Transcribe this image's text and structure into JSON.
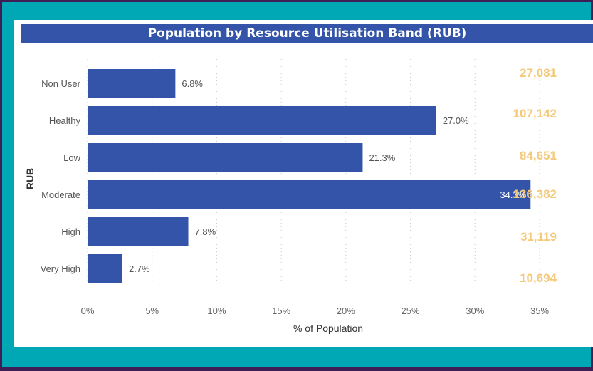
{
  "chart_data": {
    "type": "bar",
    "orientation": "horizontal",
    "title": "Population by Resource Utilisation Band (RUB)",
    "xlabel": "% of Population",
    "ylabel": "RUB",
    "categories": [
      "Non User",
      "Healthy",
      "Low",
      "Moderate",
      "High",
      "Very High"
    ],
    "values": [
      6.8,
      27.0,
      21.3,
      34.3,
      7.8,
      2.7
    ],
    "value_labels": [
      "6.8%",
      "27.0%",
      "21.3%",
      "34.3%",
      "7.8%",
      "2.7%"
    ],
    "counts": [
      "27,081",
      "107,142",
      "84,651",
      "136,382",
      "31,119",
      "10,694"
    ],
    "xlim": [
      0,
      35
    ],
    "xticks": [
      "0%",
      "5%",
      "10%",
      "15%",
      "20%",
      "25%",
      "30%",
      "35%"
    ],
    "grid": true,
    "colors": {
      "bar": "#3354a8",
      "title_bg": "#3354a8",
      "counts": "#f5c97a",
      "background": "#00a8b5",
      "border": "#3d1f55"
    }
  }
}
